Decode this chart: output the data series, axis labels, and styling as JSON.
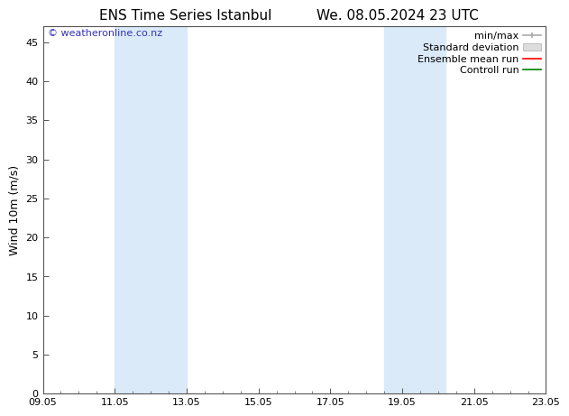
{
  "title_left": "ENS Time Series Istanbul",
  "title_right": "We. 08.05.2024 23 UTC",
  "ylabel": "Wind 10m (m/s)",
  "ylim": [
    0,
    47
  ],
  "yticks": [
    0,
    5,
    10,
    15,
    20,
    25,
    30,
    35,
    40,
    45
  ],
  "xtick_labels": [
    "09.05",
    "11.05",
    "13.05",
    "15.05",
    "17.05",
    "19.05",
    "21.05",
    "23.05"
  ],
  "xtick_positions": [
    0,
    2,
    4,
    6,
    8,
    10,
    12,
    14
  ],
  "xlim": [
    0,
    14
  ],
  "shaded_bands": [
    {
      "x_start": 2,
      "x_end": 4,
      "color": "#daeaf8"
    },
    {
      "x_start": 9.5,
      "x_end": 11.2,
      "color": "#daeaf8"
    }
  ],
  "watermark_text": "© weatheronline.co.nz",
  "watermark_color": "#3333bb",
  "legend_items": [
    {
      "label": "min/max",
      "color": "#aaaaaa"
    },
    {
      "label": "Standard deviation",
      "color": "#cccccc"
    },
    {
      "label": "Ensemble mean run",
      "color": "red"
    },
    {
      "label": "Controll run",
      "color": "green"
    }
  ],
  "bg_color": "#ffffff",
  "title_fontsize": 11,
  "axis_label_fontsize": 9,
  "tick_fontsize": 8,
  "legend_fontsize": 8
}
